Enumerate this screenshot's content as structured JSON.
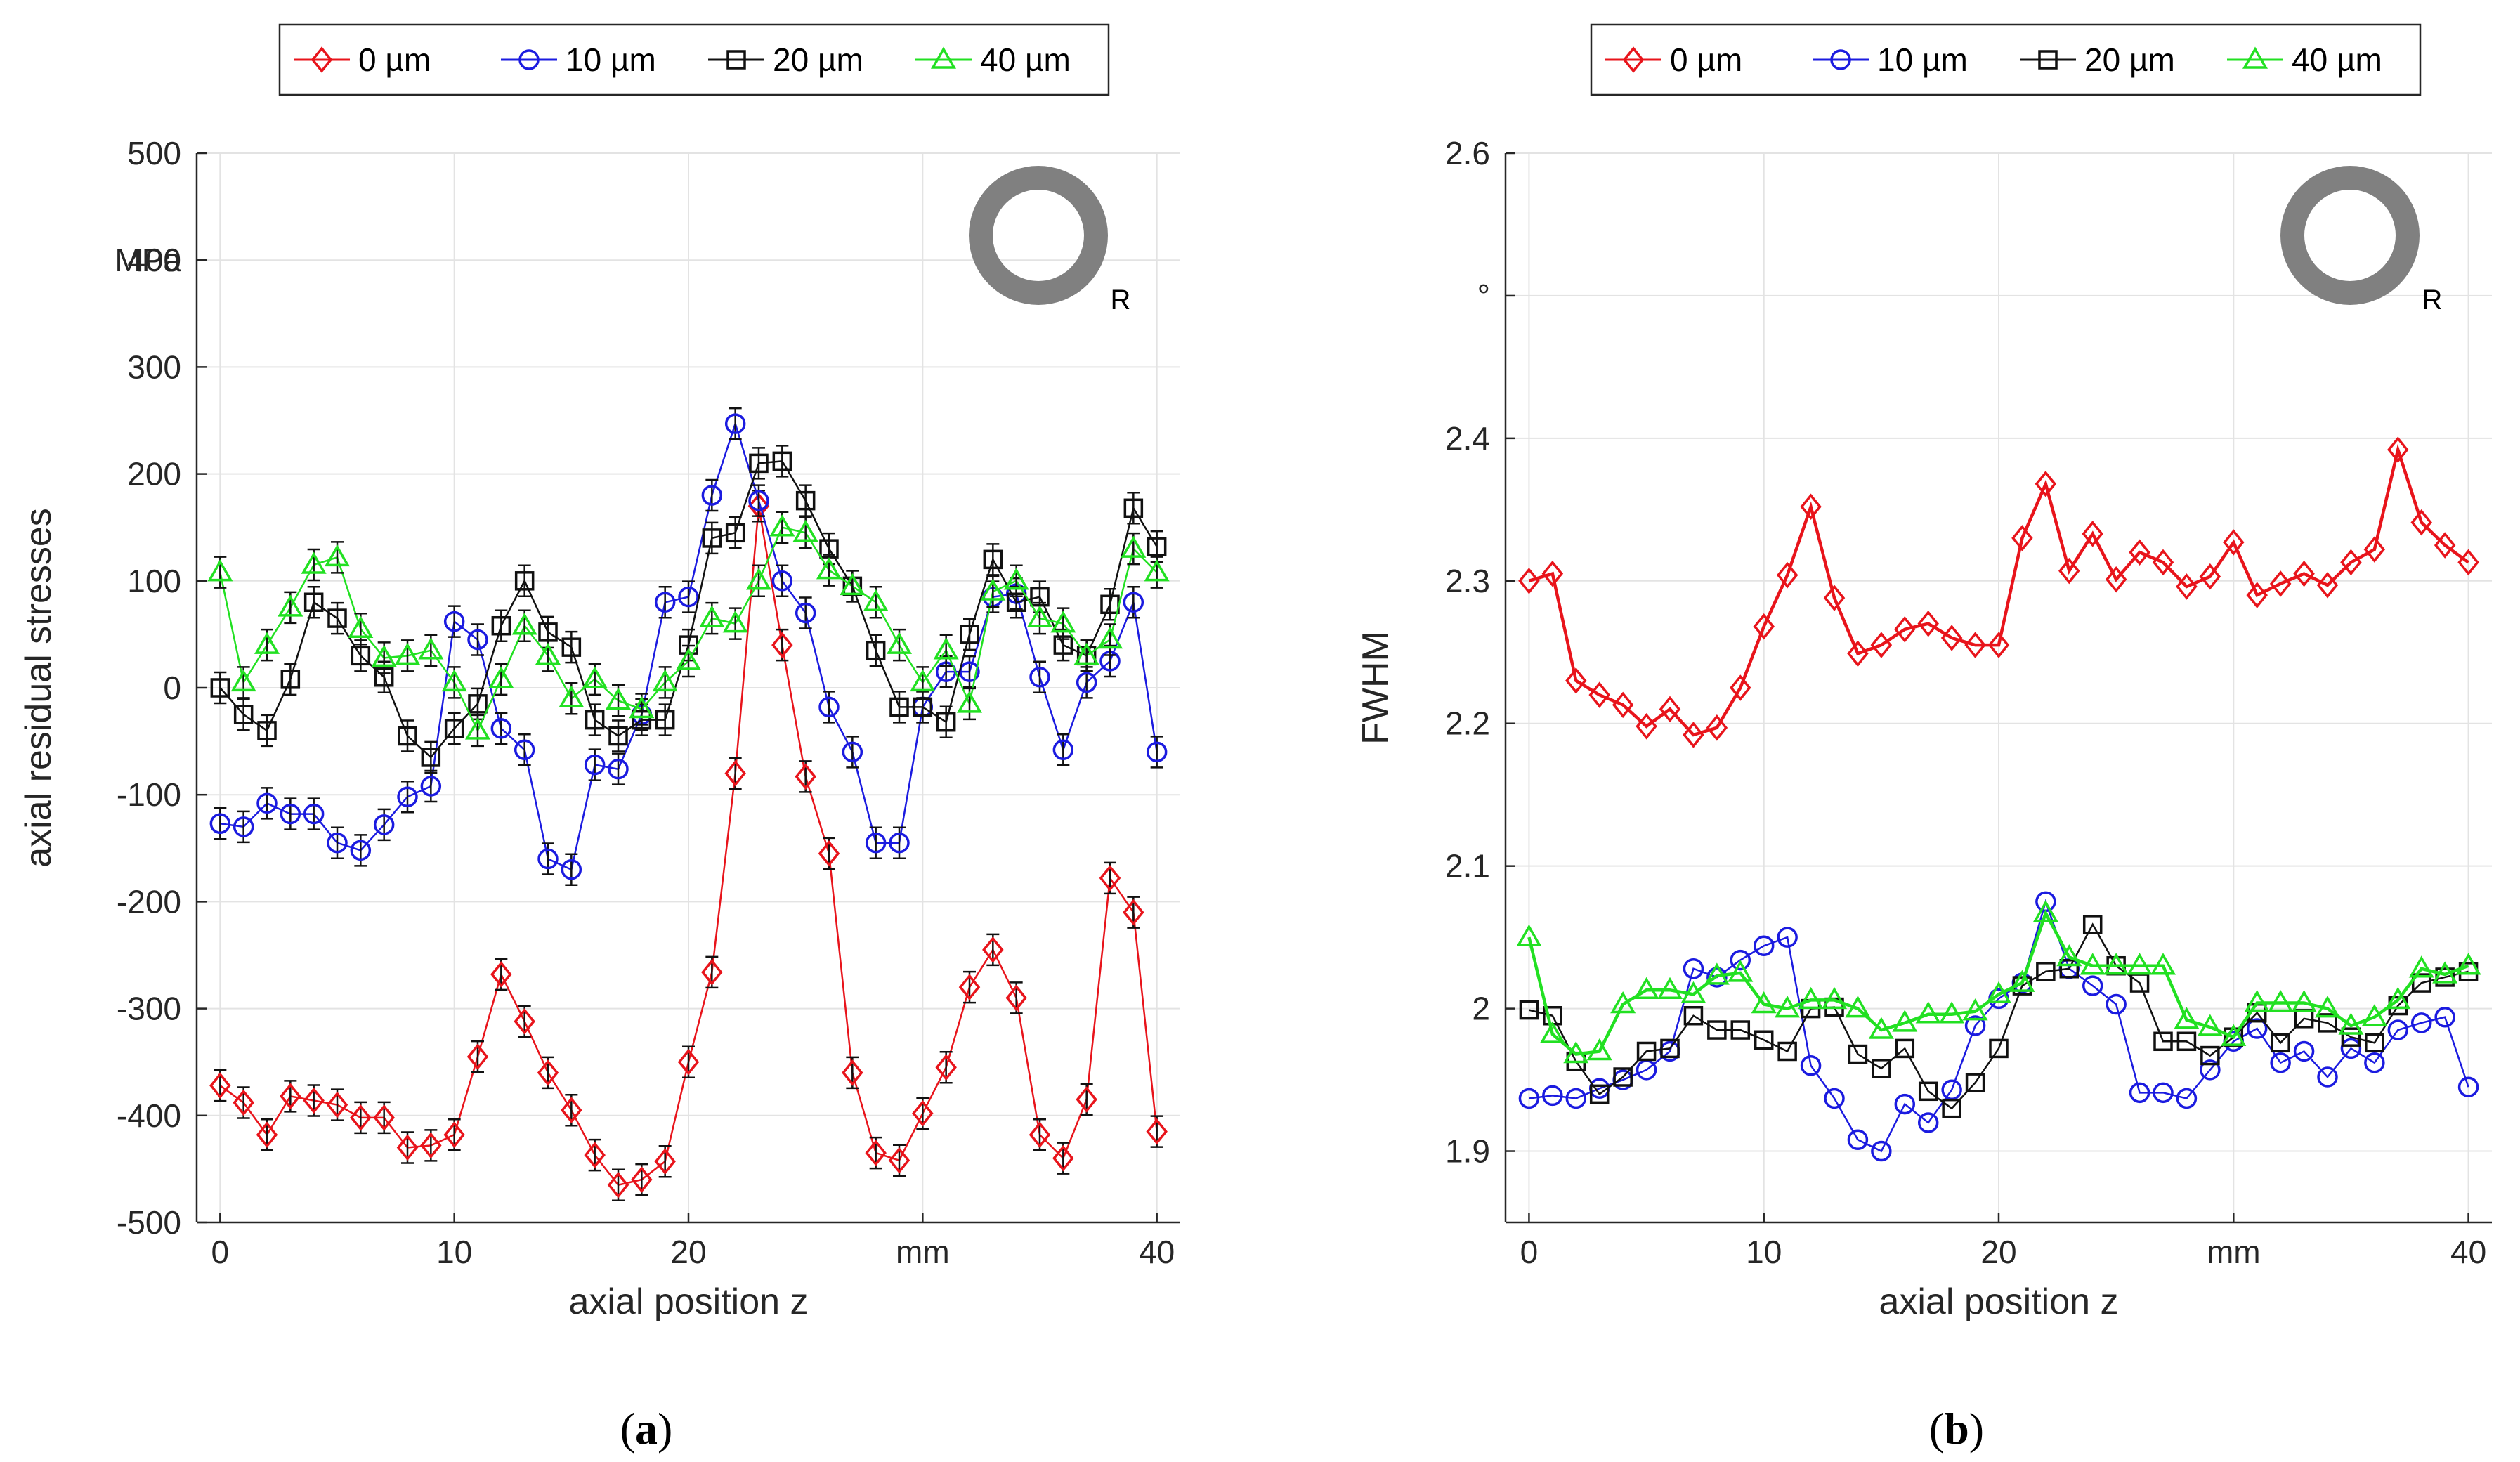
{
  "chart_data": [
    {
      "id": "a",
      "type": "line",
      "caption_letter": "a",
      "ylabel": "axial residual stresses",
      "yunit": "MPa",
      "xlabel": "axial position z",
      "xunit": "mm",
      "xlim": [
        -1,
        41
      ],
      "ylim": [
        -500,
        500
      ],
      "xticks": [
        0,
        10,
        20,
        40
      ],
      "yticks": [
        -500,
        -400,
        -300,
        -200,
        -100,
        0,
        100,
        200,
        300,
        400,
        500
      ],
      "ring_label": "R",
      "legend": [
        "0 µm",
        "10 µm",
        "20 µm",
        "40 µm"
      ],
      "series": [
        {
          "name": "0 µm",
          "color": "#e8141b",
          "marker": "diamond",
          "errorbars": true,
          "x": [
            0,
            1,
            2,
            3,
            4,
            5,
            6,
            7,
            8,
            9,
            10,
            11,
            12,
            13,
            14,
            15,
            16,
            17,
            18,
            19,
            20,
            21,
            22,
            23,
            24,
            25,
            26,
            27,
            28,
            29,
            30,
            31,
            32,
            33,
            34,
            35,
            36,
            37,
            38,
            39,
            40
          ],
          "values": [
            -372,
            -388,
            -418,
            -382,
            -386,
            -390,
            -402,
            -402,
            -430,
            -428,
            -418,
            -345,
            -268,
            -312,
            -360,
            -395,
            -437,
            -465,
            -460,
            -443,
            -350,
            -266,
            -80,
            170,
            40,
            -83,
            -155,
            -360,
            -435,
            -442,
            -398,
            -355,
            -280,
            -245,
            -290,
            -418,
            -440,
            -385,
            -178,
            -210,
            -415
          ]
        },
        {
          "name": "10 µm",
          "color": "#1b1be0",
          "marker": "circle",
          "errorbars": true,
          "x": [
            0,
            1,
            2,
            3,
            4,
            5,
            6,
            7,
            8,
            9,
            10,
            11,
            12,
            13,
            14,
            15,
            16,
            17,
            18,
            19,
            20,
            21,
            22,
            23,
            24,
            25,
            26,
            27,
            28,
            29,
            30,
            31,
            32,
            33,
            34,
            35,
            36,
            37,
            38,
            39,
            40
          ],
          "values": [
            -127,
            -130,
            -108,
            -118,
            -118,
            -145,
            -152,
            -128,
            -102,
            -92,
            62,
            45,
            -38,
            -58,
            -160,
            -170,
            -72,
            -76,
            -25,
            80,
            85,
            180,
            247,
            175,
            100,
            70,
            -18,
            -60,
            -145,
            -145,
            -18,
            15,
            15,
            85,
            88,
            10,
            -58,
            5,
            25,
            80,
            -60
          ]
        },
        {
          "name": "20 µm",
          "color": "#111111",
          "marker": "square",
          "errorbars": true,
          "x": [
            0,
            1,
            2,
            3,
            4,
            5,
            6,
            7,
            8,
            9,
            10,
            11,
            12,
            13,
            14,
            15,
            16,
            17,
            18,
            19,
            20,
            21,
            22,
            23,
            24,
            25,
            26,
            27,
            28,
            29,
            30,
            31,
            32,
            33,
            34,
            35,
            36,
            37,
            38,
            39,
            40
          ],
          "values": [
            0,
            -25,
            -40,
            8,
            80,
            65,
            30,
            10,
            -45,
            -65,
            -38,
            -15,
            58,
            100,
            52,
            38,
            -30,
            -45,
            -30,
            -30,
            40,
            140,
            145,
            210,
            212,
            175,
            130,
            95,
            35,
            -18,
            -18,
            -32,
            50,
            120,
            80,
            85,
            40,
            30,
            78,
            168,
            132
          ]
        },
        {
          "name": "40 µm",
          "color": "#22e022",
          "marker": "triangle",
          "errorbars": true,
          "x": [
            0,
            1,
            2,
            3,
            4,
            5,
            6,
            7,
            8,
            9,
            10,
            11,
            12,
            13,
            14,
            15,
            16,
            17,
            18,
            19,
            20,
            21,
            22,
            23,
            24,
            25,
            26,
            27,
            28,
            29,
            30,
            31,
            32,
            33,
            34,
            35,
            36,
            37,
            38,
            39,
            40
          ],
          "values": [
            108,
            5,
            40,
            75,
            115,
            122,
            55,
            28,
            30,
            35,
            5,
            -40,
            8,
            58,
            30,
            -10,
            8,
            -12,
            -20,
            5,
            25,
            65,
            60,
            100,
            150,
            145,
            110,
            95,
            80,
            40,
            5,
            35,
            -15,
            90,
            100,
            65,
            60,
            30,
            45,
            130,
            108
          ]
        }
      ]
    },
    {
      "id": "b",
      "type": "line",
      "caption_letter": "b",
      "ylabel": "FWHM",
      "yunit": "°",
      "xlabel": "axial position z",
      "xunit": "mm",
      "xlim": [
        -1,
        41
      ],
      "ylim": [
        1.85,
        2.6
      ],
      "xticks": [
        0,
        10,
        20,
        40
      ],
      "yticks": [
        1.9,
        2.0,
        2.1,
        2.2,
        2.3,
        2.4,
        2.6
      ],
      "ytick_labels": [
        "1.9",
        "2",
        "2.1",
        "2.2",
        "2.3",
        "2.4",
        "2.6"
      ],
      "ring_label": "R",
      "legend": [
        "0 µm",
        "10 µm",
        "20 µm",
        "40 µm"
      ],
      "series": [
        {
          "name": "0 µm",
          "color": "#e8141b",
          "marker": "diamond",
          "errorbars": false,
          "x": [
            0,
            1,
            2,
            3,
            4,
            5,
            6,
            7,
            8,
            9,
            10,
            11,
            12,
            13,
            14,
            15,
            16,
            17,
            18,
            19,
            20,
            21,
            22,
            23,
            24,
            25,
            26,
            27,
            28,
            29,
            30,
            31,
            32,
            33,
            34,
            35,
            36,
            37,
            38,
            39,
            40
          ],
          "values": [
            2.3,
            2.305,
            2.23,
            2.22,
            2.213,
            2.198,
            2.21,
            2.192,
            2.197,
            2.225,
            2.268,
            2.304,
            2.352,
            2.288,
            2.249,
            2.255,
            2.266,
            2.27,
            2.26,
            2.255,
            2.255,
            2.33,
            2.368,
            2.307,
            2.333,
            2.301,
            2.32,
            2.313,
            2.296,
            2.303,
            2.327,
            2.29,
            2.298,
            2.305,
            2.297,
            2.313,
            2.322,
            2.392,
            2.341,
            2.325,
            2.313
          ]
        },
        {
          "name": "10 µm",
          "color": "#1b1be0",
          "marker": "circle",
          "errorbars": false,
          "x": [
            0,
            1,
            2,
            3,
            4,
            5,
            6,
            7,
            8,
            9,
            10,
            11,
            12,
            13,
            14,
            15,
            16,
            17,
            18,
            19,
            20,
            21,
            22,
            23,
            24,
            25,
            26,
            27,
            28,
            29,
            30,
            31,
            32,
            33,
            34,
            35,
            36,
            37,
            38,
            39,
            40
          ],
          "values": [
            1.937,
            1.939,
            1.937,
            1.944,
            1.95,
            1.957,
            1.97,
            2.028,
            2.022,
            2.034,
            2.044,
            2.05,
            1.96,
            1.937,
            1.908,
            1.9,
            1.933,
            1.92,
            1.943,
            1.988,
            2.007,
            2.018,
            2.075,
            2.028,
            2.016,
            2.003,
            1.941,
            1.941,
            1.937,
            1.957,
            1.977,
            1.986,
            1.962,
            1.97,
            1.952,
            1.972,
            1.962,
            1.985,
            1.99,
            1.994,
            1.945
          ]
        },
        {
          "name": "20 µm",
          "color": "#111111",
          "marker": "square",
          "errorbars": false,
          "x": [
            0,
            1,
            2,
            3,
            4,
            5,
            6,
            7,
            8,
            9,
            10,
            11,
            12,
            13,
            14,
            15,
            16,
            17,
            18,
            19,
            20,
            21,
            22,
            23,
            24,
            25,
            26,
            27,
            28,
            29,
            30,
            31,
            32,
            33,
            34,
            35,
            36,
            37,
            38,
            39,
            40
          ],
          "values": [
            1.999,
            1.995,
            1.963,
            1.94,
            1.952,
            1.97,
            1.972,
            1.995,
            1.985,
            1.985,
            1.978,
            1.97,
            2.0,
            2.001,
            1.968,
            1.958,
            1.972,
            1.942,
            1.93,
            1.948,
            1.972,
            2.016,
            2.026,
            2.028,
            2.059,
            2.03,
            2.018,
            1.977,
            1.977,
            1.967,
            1.98,
            1.997,
            1.976,
            1.993,
            1.99,
            1.98,
            1.976,
            2.002,
            2.018,
            2.022,
            2.026
          ]
        },
        {
          "name": "40 µm",
          "color": "#22e022",
          "marker": "triangle",
          "errorbars": false,
          "x": [
            0,
            1,
            2,
            3,
            4,
            5,
            6,
            7,
            8,
            9,
            10,
            11,
            12,
            13,
            14,
            15,
            16,
            17,
            18,
            19,
            20,
            21,
            22,
            23,
            24,
            25,
            26,
            27,
            28,
            29,
            30,
            31,
            32,
            33,
            34,
            35,
            36,
            37,
            38,
            39,
            40
          ],
          "values": [
            2.05,
            1.982,
            1.968,
            1.97,
            2.003,
            2.013,
            2.013,
            2.01,
            2.023,
            2.025,
            2.003,
            2.0,
            2.006,
            2.006,
            2.0,
            1.985,
            1.99,
            1.996,
            1.996,
            1.998,
            2.01,
            2.018,
            2.067,
            2.036,
            2.03,
            2.03,
            2.03,
            2.03,
            1.992,
            1.987,
            1.98,
            2.004,
            2.004,
            2.004,
            2.0,
            1.988,
            1.994,
            2.006,
            2.028,
            2.024,
            2.03
          ]
        }
      ]
    }
  ]
}
